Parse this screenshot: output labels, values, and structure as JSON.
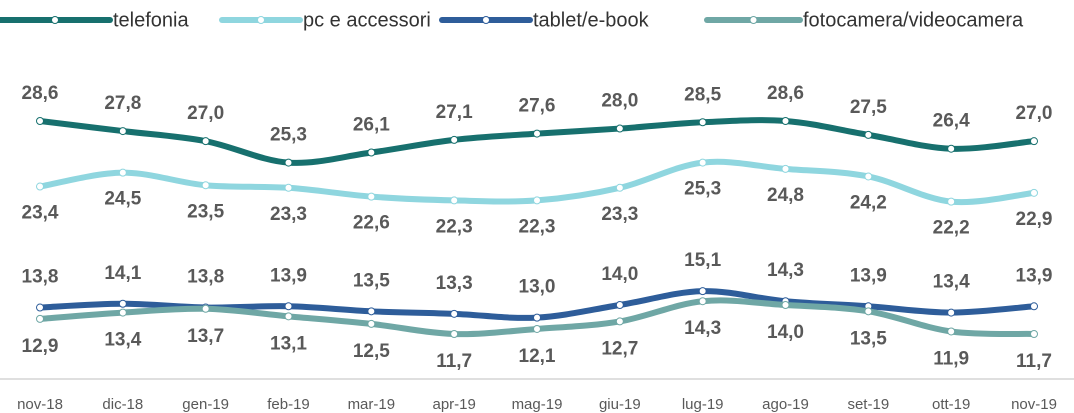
{
  "chart_data": {
    "type": "line",
    "categories": [
      "nov-18",
      "dic-18",
      "gen-19",
      "feb-19",
      "mar-19",
      "apr-19",
      "mag-19",
      "giu-19",
      "lug-19",
      "ago-19",
      "set-19",
      "ott-19",
      "nov-19"
    ],
    "series": [
      {
        "name": "telefonia",
        "color": "#17706e",
        "values": [
          28.6,
          27.8,
          27.0,
          25.3,
          26.1,
          27.1,
          27.6,
          28.0,
          28.5,
          28.6,
          27.5,
          26.4,
          27.0
        ],
        "value_labels": [
          "28,6",
          "27,8",
          "27,0",
          "25,3",
          "26,1",
          "27,1",
          "27,6",
          "28,0",
          "28,5",
          "28,6",
          "27,5",
          "26,4",
          "27,0"
        ]
      },
      {
        "name": "pc e accessori",
        "color": "#8fd6df",
        "values": [
          23.4,
          24.5,
          23.5,
          23.3,
          22.6,
          22.3,
          22.3,
          23.3,
          25.3,
          24.8,
          24.2,
          22.2,
          22.9
        ],
        "value_labels": [
          "23,4",
          "24,5",
          "23,5",
          "23,3",
          "22,6",
          "22,3",
          "22,3",
          "23,3",
          "25,3",
          "24,8",
          "24,2",
          "22,2",
          "22,9"
        ]
      },
      {
        "name": "tablet/e-book",
        "color": "#2e5d9a",
        "values": [
          13.8,
          14.1,
          13.8,
          13.9,
          13.5,
          13.3,
          13.0,
          14.0,
          15.1,
          14.3,
          13.9,
          13.4,
          13.9
        ],
        "value_labels": [
          "13,8",
          "14,1",
          "13,8",
          "13,9",
          "13,5",
          "13,3",
          "13,0",
          "14,0",
          "15,1",
          "14,3",
          "13,9",
          "13,4",
          "13,9"
        ]
      },
      {
        "name": "fotocamera/videocamera",
        "color": "#6fa7a5",
        "values": [
          12.9,
          13.4,
          13.7,
          13.1,
          12.5,
          11.7,
          12.1,
          12.7,
          14.3,
          14.0,
          13.5,
          11.9,
          11.7
        ],
        "value_labels": [
          "12,9",
          "13,4",
          "13,7",
          "13,1",
          "12,5",
          "11,7",
          "12,1",
          "12,7",
          "14,3",
          "14,0",
          "13,5",
          "11,9",
          "11,7"
        ]
      }
    ]
  }
}
